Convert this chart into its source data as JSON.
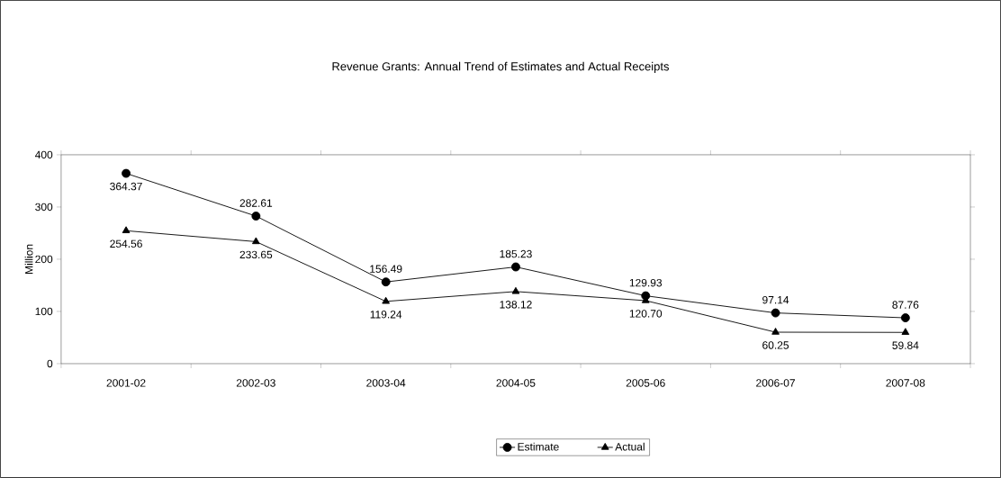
{
  "chart_data": {
    "type": "line",
    "title": "Revenue Grants: Annual Trend of Estimates and Actual Receipts",
    "ylabel": "Million",
    "categories": [
      "2001-02",
      "2002-03",
      "2003-04",
      "2004-05",
      "2005-06",
      "2006-07",
      "2007-08"
    ],
    "series": [
      {
        "name": "Estimate",
        "color": "#000000",
        "marker": "circle",
        "values": [
          364.37,
          282.61,
          156.49,
          185.23,
          129.93,
          97.14,
          87.76
        ],
        "value_labels": [
          "364.37",
          "282.61",
          "156.49",
          "185.23",
          "129.93",
          "97.14",
          "87.76"
        ]
      },
      {
        "name": "Actual",
        "color": "#000000",
        "marker": "triangle",
        "values": [
          254.56,
          233.65,
          119.24,
          138.12,
          120.7,
          60.25,
          59.84
        ],
        "value_labels": [
          "254.56",
          "233.65",
          "119.24",
          "138.12",
          "120.70",
          "60.25",
          "59.84"
        ]
      }
    ],
    "ylim": [
      0,
      400
    ],
    "yticks": [
      0,
      100,
      200,
      300,
      400
    ],
    "grid": false,
    "legend": "bottom",
    "line_style": "solid"
  }
}
